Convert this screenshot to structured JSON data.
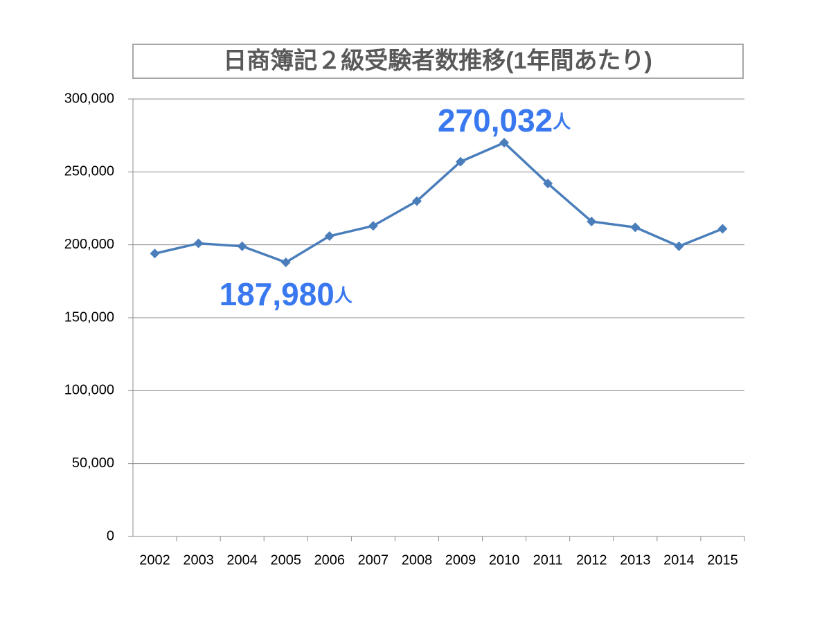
{
  "chart_data": {
    "type": "line",
    "title": "日商簿記２級受験者数推移(1年間あたり)",
    "categories": [
      "2002",
      "2003",
      "2004",
      "2005",
      "2006",
      "2007",
      "2008",
      "2009",
      "2010",
      "2011",
      "2012",
      "2013",
      "2014",
      "2015"
    ],
    "series": [
      {
        "color": "#4a7ebb",
        "values": [
          194000,
          201000,
          199000,
          187980,
          206000,
          213000,
          230000,
          257000,
          270032,
          242000,
          216000,
          212000,
          199000,
          211000
        ],
        "value_labels": [
          null,
          null,
          null,
          "187,980",
          null,
          null,
          null,
          null,
          "270,032",
          null,
          null,
          null,
          null,
          null
        ],
        "value_label_unit": "人",
        "value_label_color": "#3a78f0"
      }
    ],
    "ylim": [
      0,
      300000
    ],
    "yticks": [
      0,
      {
        "value": 50000,
        "label": "50,000"
      },
      {
        "value": 100000,
        "label": "100,000"
      },
      {
        "value": 150000,
        "label": "150,000"
      },
      {
        "value": 200000,
        "label": "200,000"
      },
      {
        "value": 250000,
        "label": "250,000"
      },
      {
        "value": 300000,
        "label": "300,000"
      }
    ],
    "grid": true
  }
}
